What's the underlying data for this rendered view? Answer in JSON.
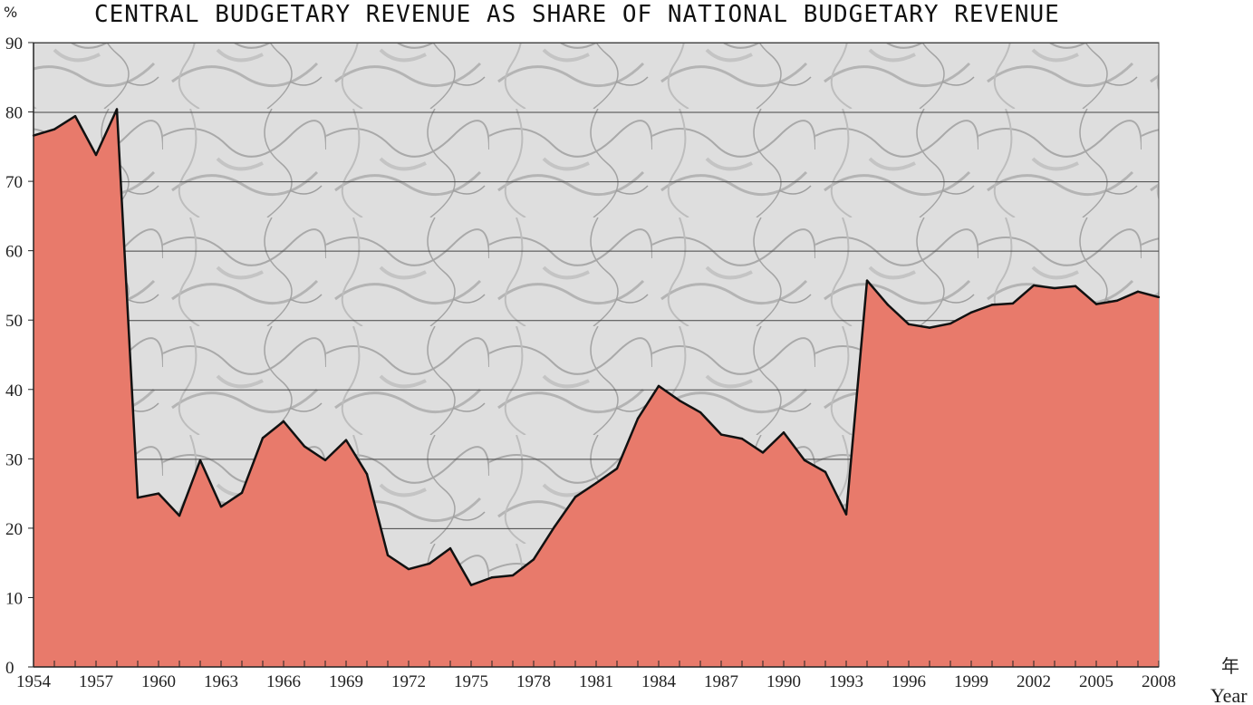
{
  "chart_data": {
    "type": "area",
    "title": "CENTRAL BUDGETARY REVENUE AS SHARE OF NATIONAL BUDGETARY REVENUE",
    "y_unit": "%",
    "xlabel_cn": "年",
    "xlabel": "Year",
    "ylim": [
      0,
      90
    ],
    "xlim": [
      1954,
      2008
    ],
    "y_ticks": [
      0,
      10,
      20,
      30,
      40,
      50,
      60,
      70,
      80,
      90
    ],
    "x_ticks": [
      1954,
      1957,
      1960,
      1963,
      1966,
      1969,
      1972,
      1975,
      1978,
      1981,
      1984,
      1987,
      1990,
      1993,
      1996,
      1999,
      2002,
      2005,
      2008
    ],
    "x_tick_labels": [
      "1954",
      "1957",
      "1960",
      "1963",
      "1966",
      "1969",
      "1972",
      "1975",
      "1978",
      "1981",
      "1984",
      "1987",
      "1990",
      "1993",
      "1996",
      "1999",
      "2002",
      "2005",
      "2008"
    ],
    "grid": "horizontal",
    "fill_color": "#e87a6b",
    "x": [
      1954,
      1955,
      1956,
      1957,
      1958,
      1959,
      1960,
      1961,
      1962,
      1963,
      1964,
      1965,
      1966,
      1967,
      1968,
      1969,
      1970,
      1971,
      1972,
      1973,
      1974,
      1975,
      1976,
      1977,
      1978,
      1979,
      1980,
      1981,
      1982,
      1983,
      1984,
      1985,
      1986,
      1987,
      1988,
      1989,
      1990,
      1991,
      1992,
      1993,
      1994,
      1995,
      1996,
      1997,
      1998,
      1999,
      2000,
      2001,
      2002,
      2003,
      2004,
      2005,
      2006,
      2007,
      2008
    ],
    "values": [
      76.6,
      77.5,
      79.4,
      73.8,
      80.4,
      24.4,
      25.0,
      21.8,
      29.8,
      23.1,
      25.1,
      33.0,
      35.4,
      31.8,
      29.8,
      32.7,
      27.8,
      16.1,
      14.1,
      14.9,
      17.1,
      11.8,
      12.9,
      13.2,
      15.5,
      20.2,
      24.5,
      26.5,
      28.6,
      35.8,
      40.5,
      38.4,
      36.7,
      33.5,
      32.9,
      30.9,
      33.8,
      29.8,
      28.1,
      22.0,
      55.7,
      52.2,
      49.4,
      48.9,
      49.5,
      51.1,
      52.2,
      52.4,
      55.0,
      54.6,
      54.9,
      52.3,
      52.8,
      54.1,
      53.3
    ]
  }
}
